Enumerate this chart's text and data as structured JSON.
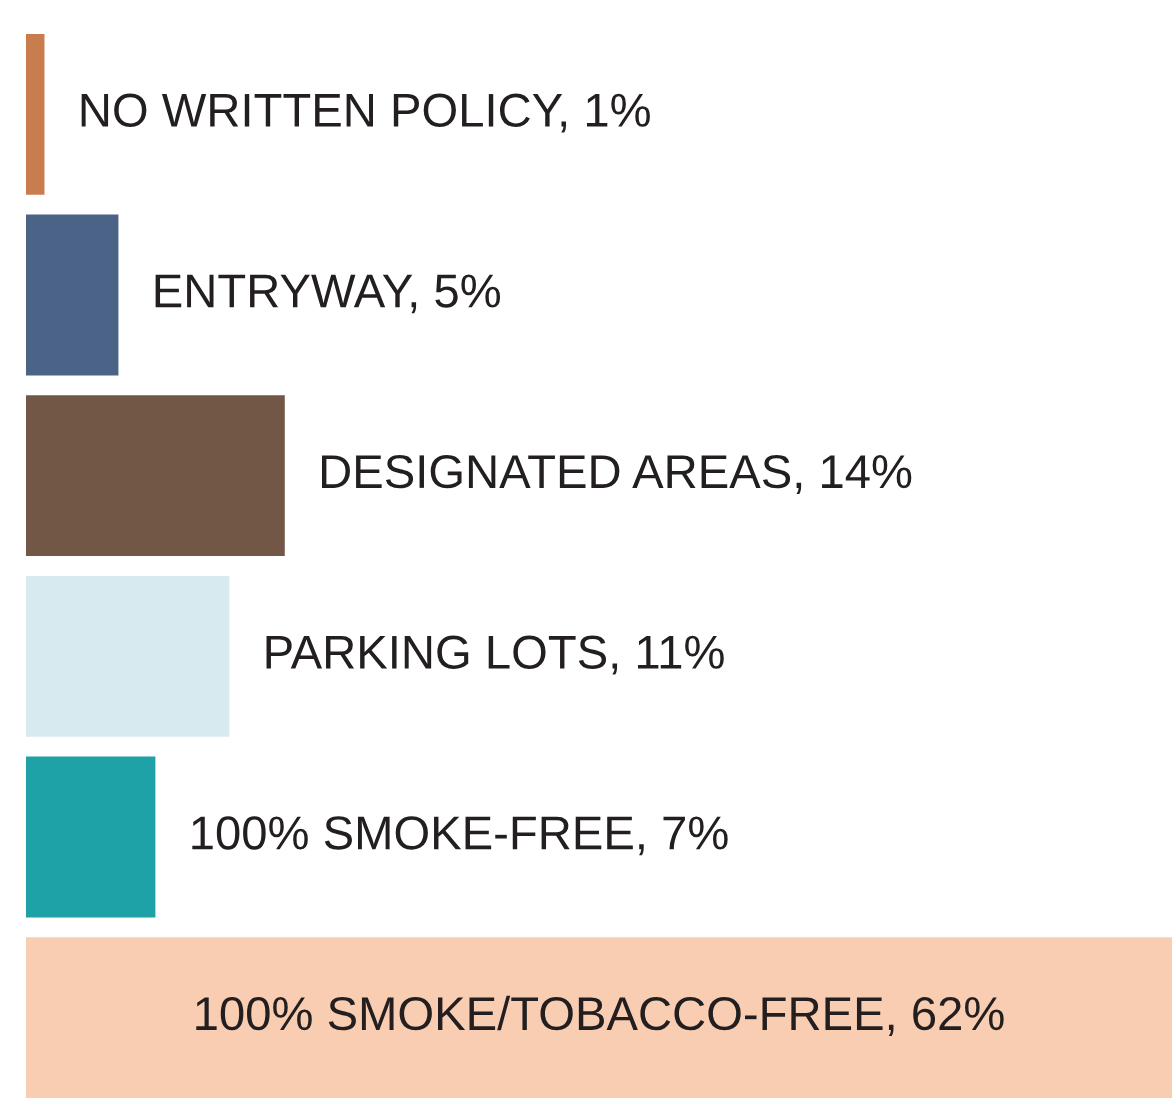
{
  "chart_data": {
    "type": "bar",
    "orientation": "horizontal",
    "categories": [
      null,
      null,
      null,
      null,
      null,
      null
    ],
    "values": [
      1,
      5,
      14,
      11,
      7,
      62
    ],
    "colors": [
      "#c97d4e",
      "#4a6387",
      "#725646",
      "#d7eaf0",
      "#1fa1a8",
      "#f9cdb2"
    ],
    "value_labels": [
      "NO WRITTEN POLICY, 1%",
      "ENTRYWAY, 5%",
      "DESIGNATED AREAS, 14%",
      "PARKING LOTS, 11%",
      "100% SMOKE-FREE, 7%",
      "100% SMOKE/TOBACCO-FREE, 62%"
    ],
    "grid": false,
    "legend": false,
    "tick_labels": false
  }
}
